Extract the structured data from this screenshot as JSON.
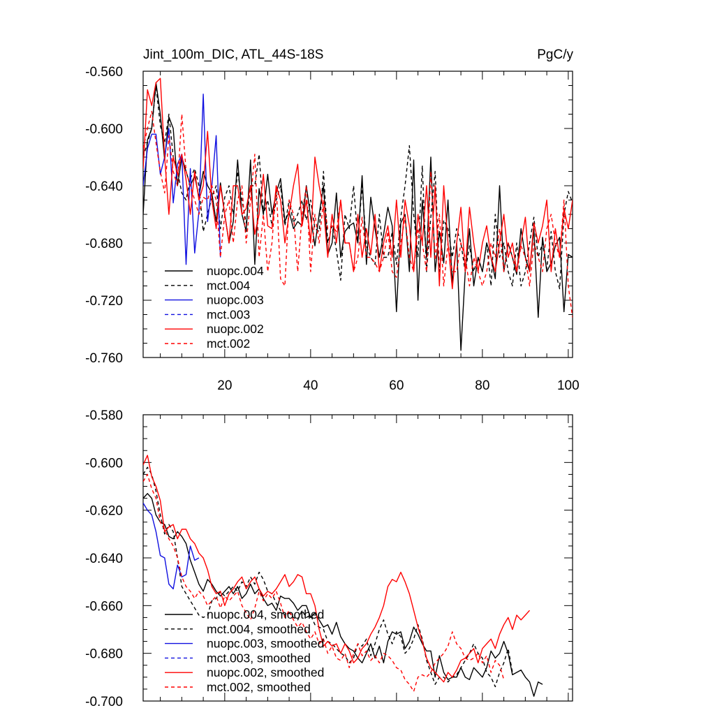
{
  "chart_data": [
    {
      "type": "line",
      "title": "Jint_100m_DIC, ATL_44S-18S",
      "units": "PgC/y",
      "xlabel": "",
      "ylabel": "",
      "xlim": [
        1,
        101
      ],
      "ylim": [
        -0.76,
        -0.56
      ],
      "x_ticks": [
        20,
        40,
        60,
        80,
        100
      ],
      "y_ticks": [
        -0.56,
        -0.6,
        -0.64,
        -0.68,
        -0.72,
        -0.76
      ],
      "y_tick_labels": [
        "-0.560",
        "-0.600",
        "-0.640",
        "-0.680",
        "-0.720",
        "-0.760"
      ],
      "legend_position": "bottom-left",
      "series": [
        {
          "name": "nuopc.004",
          "color": "#000000",
          "dash": "solid",
          "x_start": 1,
          "values": [
            -0.66,
            -0.608,
            -0.6,
            -0.568,
            -0.59,
            -0.622,
            -0.592,
            -0.6,
            -0.64,
            -0.62,
            -0.63,
            -0.64,
            -0.633,
            -0.648,
            -0.63,
            -0.64,
            -0.645,
            -0.665,
            -0.638,
            -0.66,
            -0.68,
            -0.665,
            -0.622,
            -0.66,
            -0.672,
            -0.622,
            -0.695,
            -0.642,
            -0.66,
            -0.632,
            -0.66,
            -0.645,
            -0.635,
            -0.665,
            -0.658,
            -0.67,
            -0.665,
            -0.668,
            -0.64,
            -0.662,
            -0.682,
            -0.66,
            -0.64,
            -0.688,
            -0.68,
            -0.645,
            -0.69,
            -0.672,
            -0.668,
            -0.666,
            -0.68,
            -0.633,
            -0.695,
            -0.648,
            -0.67,
            -0.69,
            -0.674,
            -0.655,
            -0.668,
            -0.728,
            -0.666,
            -0.66,
            -0.7,
            -0.622,
            -0.72,
            -0.65,
            -0.69,
            -0.62,
            -0.7,
            -0.672,
            -0.694,
            -0.65,
            -0.708,
            -0.68,
            -0.755,
            -0.7,
            -0.67,
            -0.71,
            -0.69,
            -0.7,
            -0.68,
            -0.69,
            -0.705,
            -0.64,
            -0.7,
            -0.68,
            -0.69,
            -0.702,
            -0.67,
            -0.69,
            -0.7,
            -0.67,
            -0.732,
            -0.676,
            -0.7,
            -0.694,
            -0.682,
            -0.676,
            -0.728,
            -0.688,
            -0.69
          ]
        },
        {
          "name": "mct.004",
          "color": "#000000",
          "dash": "dashed",
          "x_start": 1,
          "values": [
            -0.62,
            -0.61,
            -0.6,
            -0.57,
            -0.598,
            -0.61,
            -0.59,
            -0.62,
            -0.63,
            -0.645,
            -0.65,
            -0.635,
            -0.628,
            -0.64,
            -0.672,
            -0.66,
            -0.648,
            -0.64,
            -0.67,
            -0.648,
            -0.64,
            -0.66,
            -0.63,
            -0.65,
            -0.666,
            -0.64,
            -0.64,
            -0.618,
            -0.66,
            -0.65,
            -0.668,
            -0.65,
            -0.64,
            -0.668,
            -0.65,
            -0.666,
            -0.66,
            -0.65,
            -0.664,
            -0.65,
            -0.67,
            -0.672,
            -0.63,
            -0.68,
            -0.668,
            -0.685,
            -0.706,
            -0.66,
            -0.67,
            -0.64,
            -0.678,
            -0.64,
            -0.682,
            -0.69,
            -0.695,
            -0.66,
            -0.69,
            -0.69,
            -0.672,
            -0.695,
            -0.662,
            -0.64,
            -0.612,
            -0.66,
            -0.69,
            -0.626,
            -0.7,
            -0.662,
            -0.63,
            -0.7,
            -0.664,
            -0.67,
            -0.69,
            -0.67,
            -0.68,
            -0.7,
            -0.682,
            -0.7,
            -0.69,
            -0.7,
            -0.68,
            -0.71,
            -0.66,
            -0.69,
            -0.68,
            -0.7,
            -0.71,
            -0.68,
            -0.71,
            -0.7,
            -0.68,
            -0.662,
            -0.69,
            -0.68,
            -0.698,
            -0.672,
            -0.7,
            -0.712,
            -0.66,
            -0.644,
            -0.652
          ]
        },
        {
          "name": "nuopc.003",
          "color": "#1010e0",
          "dash": "solid",
          "x_start": 1,
          "values": [
            -0.64,
            -0.614,
            -0.604,
            -0.604,
            -0.632,
            -0.62,
            -0.6,
            -0.652,
            -0.625,
            -0.618,
            -0.695,
            -0.628,
            -0.687,
            -0.658,
            -0.576,
            -0.665,
            -0.64,
            -0.605,
            -0.69
          ]
        },
        {
          "name": "mct.003",
          "color": "#1010e0",
          "dash": "dashed",
          "x_start": 1,
          "values": []
        },
        {
          "name": "nuopc.002",
          "color": "#ff0000",
          "dash": "solid",
          "x_start": 1,
          "values": [
            -0.628,
            -0.573,
            -0.584,
            -0.568,
            -0.565,
            -0.62,
            -0.66,
            -0.62,
            -0.632,
            -0.618,
            -0.636,
            -0.66,
            -0.63,
            -0.65,
            -0.64,
            -0.602,
            -0.65,
            -0.67,
            -0.64,
            -0.66,
            -0.68,
            -0.64,
            -0.64,
            -0.66,
            -0.656,
            -0.64,
            -0.674,
            -0.66,
            -0.632,
            -0.668,
            -0.67,
            -0.64,
            -0.65,
            -0.68,
            -0.66,
            -0.64,
            -0.625,
            -0.668,
            -0.65,
            -0.68,
            -0.62,
            -0.64,
            -0.656,
            -0.69,
            -0.66,
            -0.68,
            -0.65,
            -0.68,
            -0.68,
            -0.7,
            -0.66,
            -0.69,
            -0.67,
            -0.688,
            -0.66,
            -0.7,
            -0.68,
            -0.668,
            -0.69,
            -0.65,
            -0.69,
            -0.65,
            -0.668,
            -0.7,
            -0.66,
            -0.68,
            -0.64,
            -0.69,
            -0.64,
            -0.71,
            -0.64,
            -0.68,
            -0.712,
            -0.68,
            -0.655,
            -0.7,
            -0.655,
            -0.68,
            -0.7,
            -0.68,
            -0.668,
            -0.69,
            -0.7,
            -0.68,
            -0.66,
            -0.69,
            -0.68,
            -0.7,
            -0.68,
            -0.662,
            -0.7,
            -0.666,
            -0.68,
            -0.668,
            -0.65,
            -0.7,
            -0.67,
            -0.69,
            -0.656,
            -0.67,
            -0.65
          ]
        },
        {
          "name": "mct.002",
          "color": "#ff0000",
          "dash": "dashed",
          "x_start": 1,
          "values": [
            -0.614,
            -0.6,
            -0.588,
            -0.61,
            -0.63,
            -0.645,
            -0.605,
            -0.63,
            -0.64,
            -0.59,
            -0.63,
            -0.64,
            -0.65,
            -0.66,
            -0.648,
            -0.65,
            -0.64,
            -0.65,
            -0.69,
            -0.66,
            -0.65,
            -0.68,
            -0.65,
            -0.64,
            -0.68,
            -0.65,
            -0.618,
            -0.69,
            -0.66,
            -0.7,
            -0.68,
            -0.64,
            -0.705,
            -0.71,
            -0.65,
            -0.66,
            -0.7,
            -0.66,
            -0.64,
            -0.7,
            -0.66,
            -0.68,
            -0.65,
            -0.67,
            -0.668,
            -0.672,
            -0.65,
            -0.68,
            -0.68,
            -0.7,
            -0.69,
            -0.662,
            -0.69,
            -0.69,
            -0.694,
            -0.7,
            -0.69,
            -0.672,
            -0.7,
            -0.704,
            -0.68,
            -0.662,
            -0.69,
            -0.7,
            -0.67,
            -0.68,
            -0.7,
            -0.63,
            -0.692,
            -0.66,
            -0.71,
            -0.68,
            -0.7,
            -0.7,
            -0.68,
            -0.69,
            -0.71,
            -0.69,
            -0.7,
            -0.71,
            -0.7,
            -0.68,
            -0.69,
            -0.67,
            -0.7,
            -0.68,
            -0.69,
            -0.7,
            -0.682,
            -0.69,
            -0.71,
            -0.68,
            -0.69,
            -0.7,
            -0.67,
            -0.66,
            -0.68,
            -0.69,
            -0.65,
            -0.71,
            -0.732
          ]
        }
      ]
    },
    {
      "type": "line",
      "title": "",
      "xlabel": "",
      "ylabel": "",
      "xlim": [
        1,
        101
      ],
      "ylim": [
        -0.7,
        -0.58
      ],
      "x_ticks": [
        20,
        40,
        60,
        80,
        100
      ],
      "y_ticks": [
        -0.58,
        -0.6,
        -0.62,
        -0.64,
        -0.66,
        -0.68,
        -0.7
      ],
      "y_tick_labels": [
        "-0.580",
        "-0.600",
        "-0.620",
        "-0.640",
        "-0.660",
        "-0.680",
        "-0.700"
      ],
      "legend_position": "bottom-left",
      "series": [
        {
          "name": "nuopc.004, smoothed",
          "color": "#000000",
          "dash": "solid",
          "x_start": 1,
          "values": [
            -0.615,
            -0.613,
            -0.615,
            -0.622,
            -0.625,
            -0.626,
            -0.631,
            -0.632,
            -0.629,
            -0.631,
            -0.634,
            -0.641,
            -0.646,
            -0.651,
            -0.654,
            -0.649,
            -0.651,
            -0.654,
            -0.656,
            -0.654,
            -0.652,
            -0.655,
            -0.652,
            -0.657,
            -0.655,
            -0.651,
            -0.655,
            -0.653,
            -0.657,
            -0.66,
            -0.659,
            -0.662,
            -0.656,
            -0.657,
            -0.657,
            -0.659,
            -0.662,
            -0.66,
            -0.66,
            -0.665,
            -0.663,
            -0.666,
            -0.669,
            -0.668,
            -0.672,
            -0.667,
            -0.673,
            -0.676,
            -0.678,
            -0.679,
            -0.682,
            -0.684,
            -0.68,
            -0.676,
            -0.682,
            -0.677,
            -0.684,
            -0.675,
            -0.671,
            -0.672,
            -0.671,
            -0.678,
            -0.675,
            -0.669,
            -0.672,
            -0.676,
            -0.679,
            -0.679,
            -0.69,
            -0.681,
            -0.688,
            -0.691,
            -0.69,
            -0.69,
            -0.686,
            -0.69,
            -0.691,
            -0.686,
            -0.688,
            -0.69,
            -0.686,
            -0.679,
            -0.682,
            -0.68,
            -0.675,
            -0.68,
            -0.689,
            -0.688,
            -0.687,
            -0.69,
            -0.692,
            -0.698,
            -0.692,
            -0.693
          ]
        },
        {
          "name": "mct.004, smoothed",
          "color": "#000000",
          "dash": "dashed",
          "x_start": 1,
          "values": [
            -0.605,
            -0.602,
            -0.605,
            -0.612,
            -0.622,
            -0.63,
            -0.626,
            -0.629,
            -0.64,
            -0.652,
            -0.655,
            -0.658,
            -0.661,
            -0.664,
            -0.665,
            -0.664,
            -0.658,
            -0.657,
            -0.654,
            -0.656,
            -0.654,
            -0.652,
            -0.654,
            -0.65,
            -0.652,
            -0.648,
            -0.651,
            -0.646,
            -0.649,
            -0.654,
            -0.655,
            -0.659,
            -0.662,
            -0.664,
            -0.663,
            -0.665,
            -0.666,
            -0.662,
            -0.665,
            -0.664,
            -0.668,
            -0.669,
            -0.67,
            -0.675,
            -0.676,
            -0.678,
            -0.68,
            -0.681,
            -0.684,
            -0.682,
            -0.676,
            -0.677,
            -0.674,
            -0.681,
            -0.676,
            -0.67,
            -0.666,
            -0.672,
            -0.676,
            -0.671,
            -0.673,
            -0.68,
            -0.678,
            -0.674,
            -0.668,
            -0.674,
            -0.683,
            -0.688,
            -0.693,
            -0.69,
            -0.69,
            -0.692,
            -0.69,
            -0.689,
            -0.686,
            -0.683,
            -0.68,
            -0.676,
            -0.68,
            -0.682,
            -0.688,
            -0.69,
            -0.694,
            -0.688,
            -0.684,
            -0.678,
            -0.688
          ]
        },
        {
          "name": "nuopc.003, smoothed",
          "color": "#1010e0",
          "dash": "solid",
          "x_start": 1,
          "values": [
            -0.617,
            -0.62,
            -0.622,
            -0.629,
            -0.639,
            -0.64,
            -0.651,
            -0.653,
            -0.643,
            -0.648,
            -0.647,
            -0.635,
            -0.641,
            -0.64
          ]
        },
        {
          "name": "mct.003, smoothed",
          "color": "#1010e0",
          "dash": "dashed",
          "x_start": 1,
          "values": []
        },
        {
          "name": "nuopc.002, smoothed",
          "color": "#ff0000",
          "dash": "solid",
          "x_start": 1,
          "values": [
            -0.601,
            -0.597,
            -0.606,
            -0.61,
            -0.616,
            -0.629,
            -0.627,
            -0.626,
            -0.632,
            -0.628,
            -0.628,
            -0.632,
            -0.634,
            -0.638,
            -0.64,
            -0.645,
            -0.652,
            -0.655,
            -0.654,
            -0.66,
            -0.655,
            -0.653,
            -0.65,
            -0.648,
            -0.653,
            -0.65,
            -0.648,
            -0.653,
            -0.656,
            -0.654,
            -0.655,
            -0.653,
            -0.65,
            -0.647,
            -0.652,
            -0.65,
            -0.647,
            -0.648,
            -0.655,
            -0.655,
            -0.66,
            -0.67,
            -0.677,
            -0.675,
            -0.677,
            -0.676,
            -0.68,
            -0.676,
            -0.679,
            -0.684,
            -0.682,
            -0.678,
            -0.676,
            -0.672,
            -0.669,
            -0.665,
            -0.66,
            -0.652,
            -0.649,
            -0.65,
            -0.646,
            -0.65,
            -0.655,
            -0.662,
            -0.669,
            -0.675,
            -0.682,
            -0.686,
            -0.688,
            -0.69,
            -0.692,
            -0.688,
            -0.69,
            -0.687,
            -0.683,
            -0.682,
            -0.68,
            -0.678,
            -0.684,
            -0.678,
            -0.676,
            -0.674,
            -0.678,
            -0.672,
            -0.668,
            -0.665,
            -0.67,
            -0.664,
            -0.666,
            -0.664,
            -0.662
          ]
        },
        {
          "name": "mct.002, smoothed",
          "color": "#ff0000",
          "dash": "dashed",
          "x_start": 1,
          "values": [
            -0.608,
            -0.605,
            -0.611,
            -0.615,
            -0.625,
            -0.628,
            -0.632,
            -0.635,
            -0.64,
            -0.648,
            -0.652,
            -0.654,
            -0.657,
            -0.654,
            -0.656,
            -0.66,
            -0.658,
            -0.656,
            -0.661,
            -0.656,
            -0.658,
            -0.656,
            -0.654,
            -0.66,
            -0.663,
            -0.666,
            -0.661,
            -0.654,
            -0.658,
            -0.655,
            -0.657,
            -0.654,
            -0.659,
            -0.665,
            -0.662,
            -0.666,
            -0.669,
            -0.667,
            -0.671,
            -0.674,
            -0.671,
            -0.676,
            -0.674,
            -0.68,
            -0.677,
            -0.682,
            -0.683,
            -0.68,
            -0.686,
            -0.68,
            -0.676,
            -0.681,
            -0.679,
            -0.683,
            -0.681,
            -0.684,
            -0.68,
            -0.681,
            -0.683,
            -0.686,
            -0.687,
            -0.691,
            -0.693,
            -0.696,
            -0.69,
            -0.689,
            -0.69,
            -0.688,
            -0.684,
            -0.682,
            -0.68,
            -0.677,
            -0.671,
            -0.676,
            -0.678,
            -0.682,
            -0.683,
            -0.682,
            -0.68,
            -0.684,
            -0.681,
            -0.688,
            -0.683,
            -0.685,
            -0.691
          ]
        }
      ]
    }
  ]
}
